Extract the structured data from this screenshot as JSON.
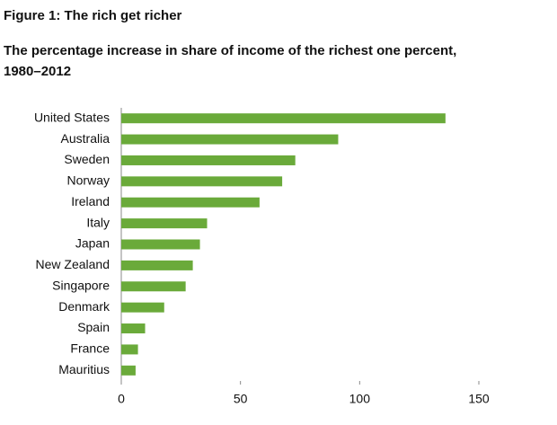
{
  "chart_data": {
    "type": "hbar",
    "title": "Figure 1: The rich get richer",
    "subtitle": [
      "The percentage increase in share of income of the richest one percent,",
      "1980–2012"
    ],
    "categories": [
      "United States",
      "Australia",
      "Sweden",
      "Norway",
      "Ireland",
      "Italy",
      "Japan",
      "New Zealand",
      "Singapore",
      "Denmark",
      "Spain",
      "France",
      "Mauritius"
    ],
    "values": [
      136,
      91,
      73,
      67.5,
      58,
      36,
      33,
      30,
      27,
      18,
      10,
      7,
      6
    ],
    "color": "#6aaa3a",
    "xlim": [
      0,
      150
    ],
    "xticks": [
      0,
      50,
      100,
      150
    ],
    "grid": false
  }
}
